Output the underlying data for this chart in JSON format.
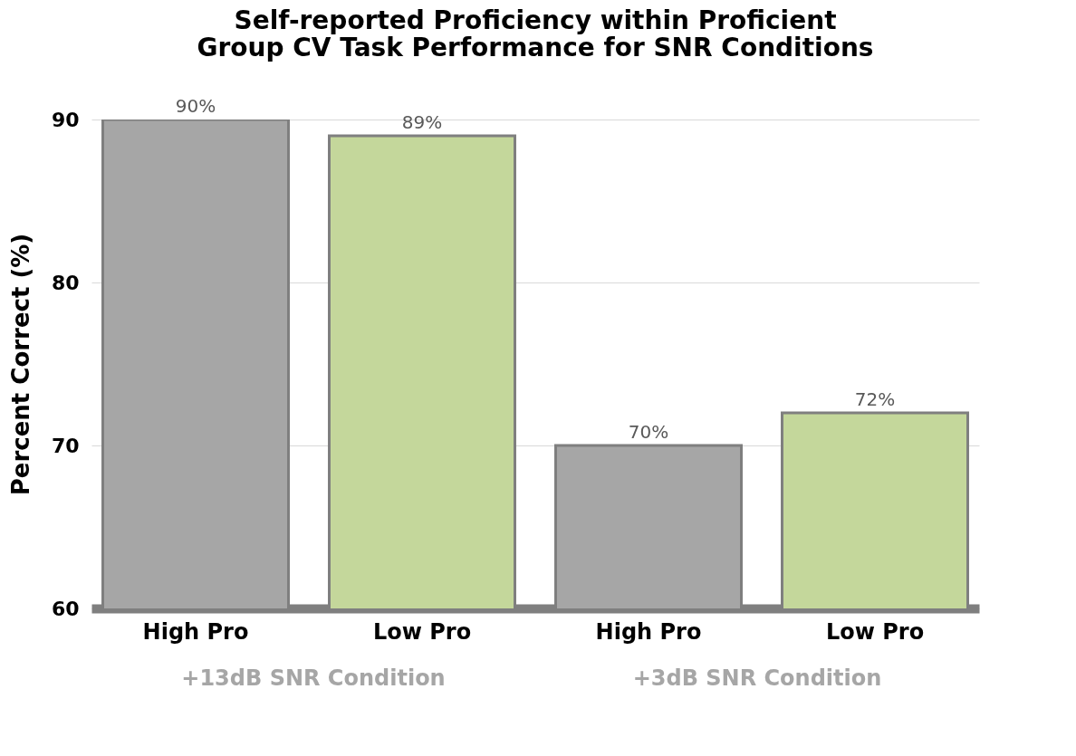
{
  "chart_data": {
    "type": "bar",
    "title": "Self-reported Proficiency within Proficient\nGroup CV Task Performance for SNR Conditions",
    "ylabel": "Percent Correct (%)",
    "categories": [
      "High Pro",
      "Low Pro",
      "High Pro",
      "Low Pro"
    ],
    "values": [
      90,
      89,
      70,
      72
    ],
    "colors": [
      "#a6a6a6",
      "#c4d79b",
      "#a6a6a6",
      "#c4d79b"
    ],
    "value_labels": [
      "90%",
      "89%",
      "70%",
      "72%"
    ],
    "annotations": [
      "+13dB SNR Condition",
      "+3dB SNR Condition"
    ],
    "ylim": [
      60,
      90
    ],
    "yticks": [
      60,
      70,
      80,
      90
    ],
    "grid": "y"
  }
}
